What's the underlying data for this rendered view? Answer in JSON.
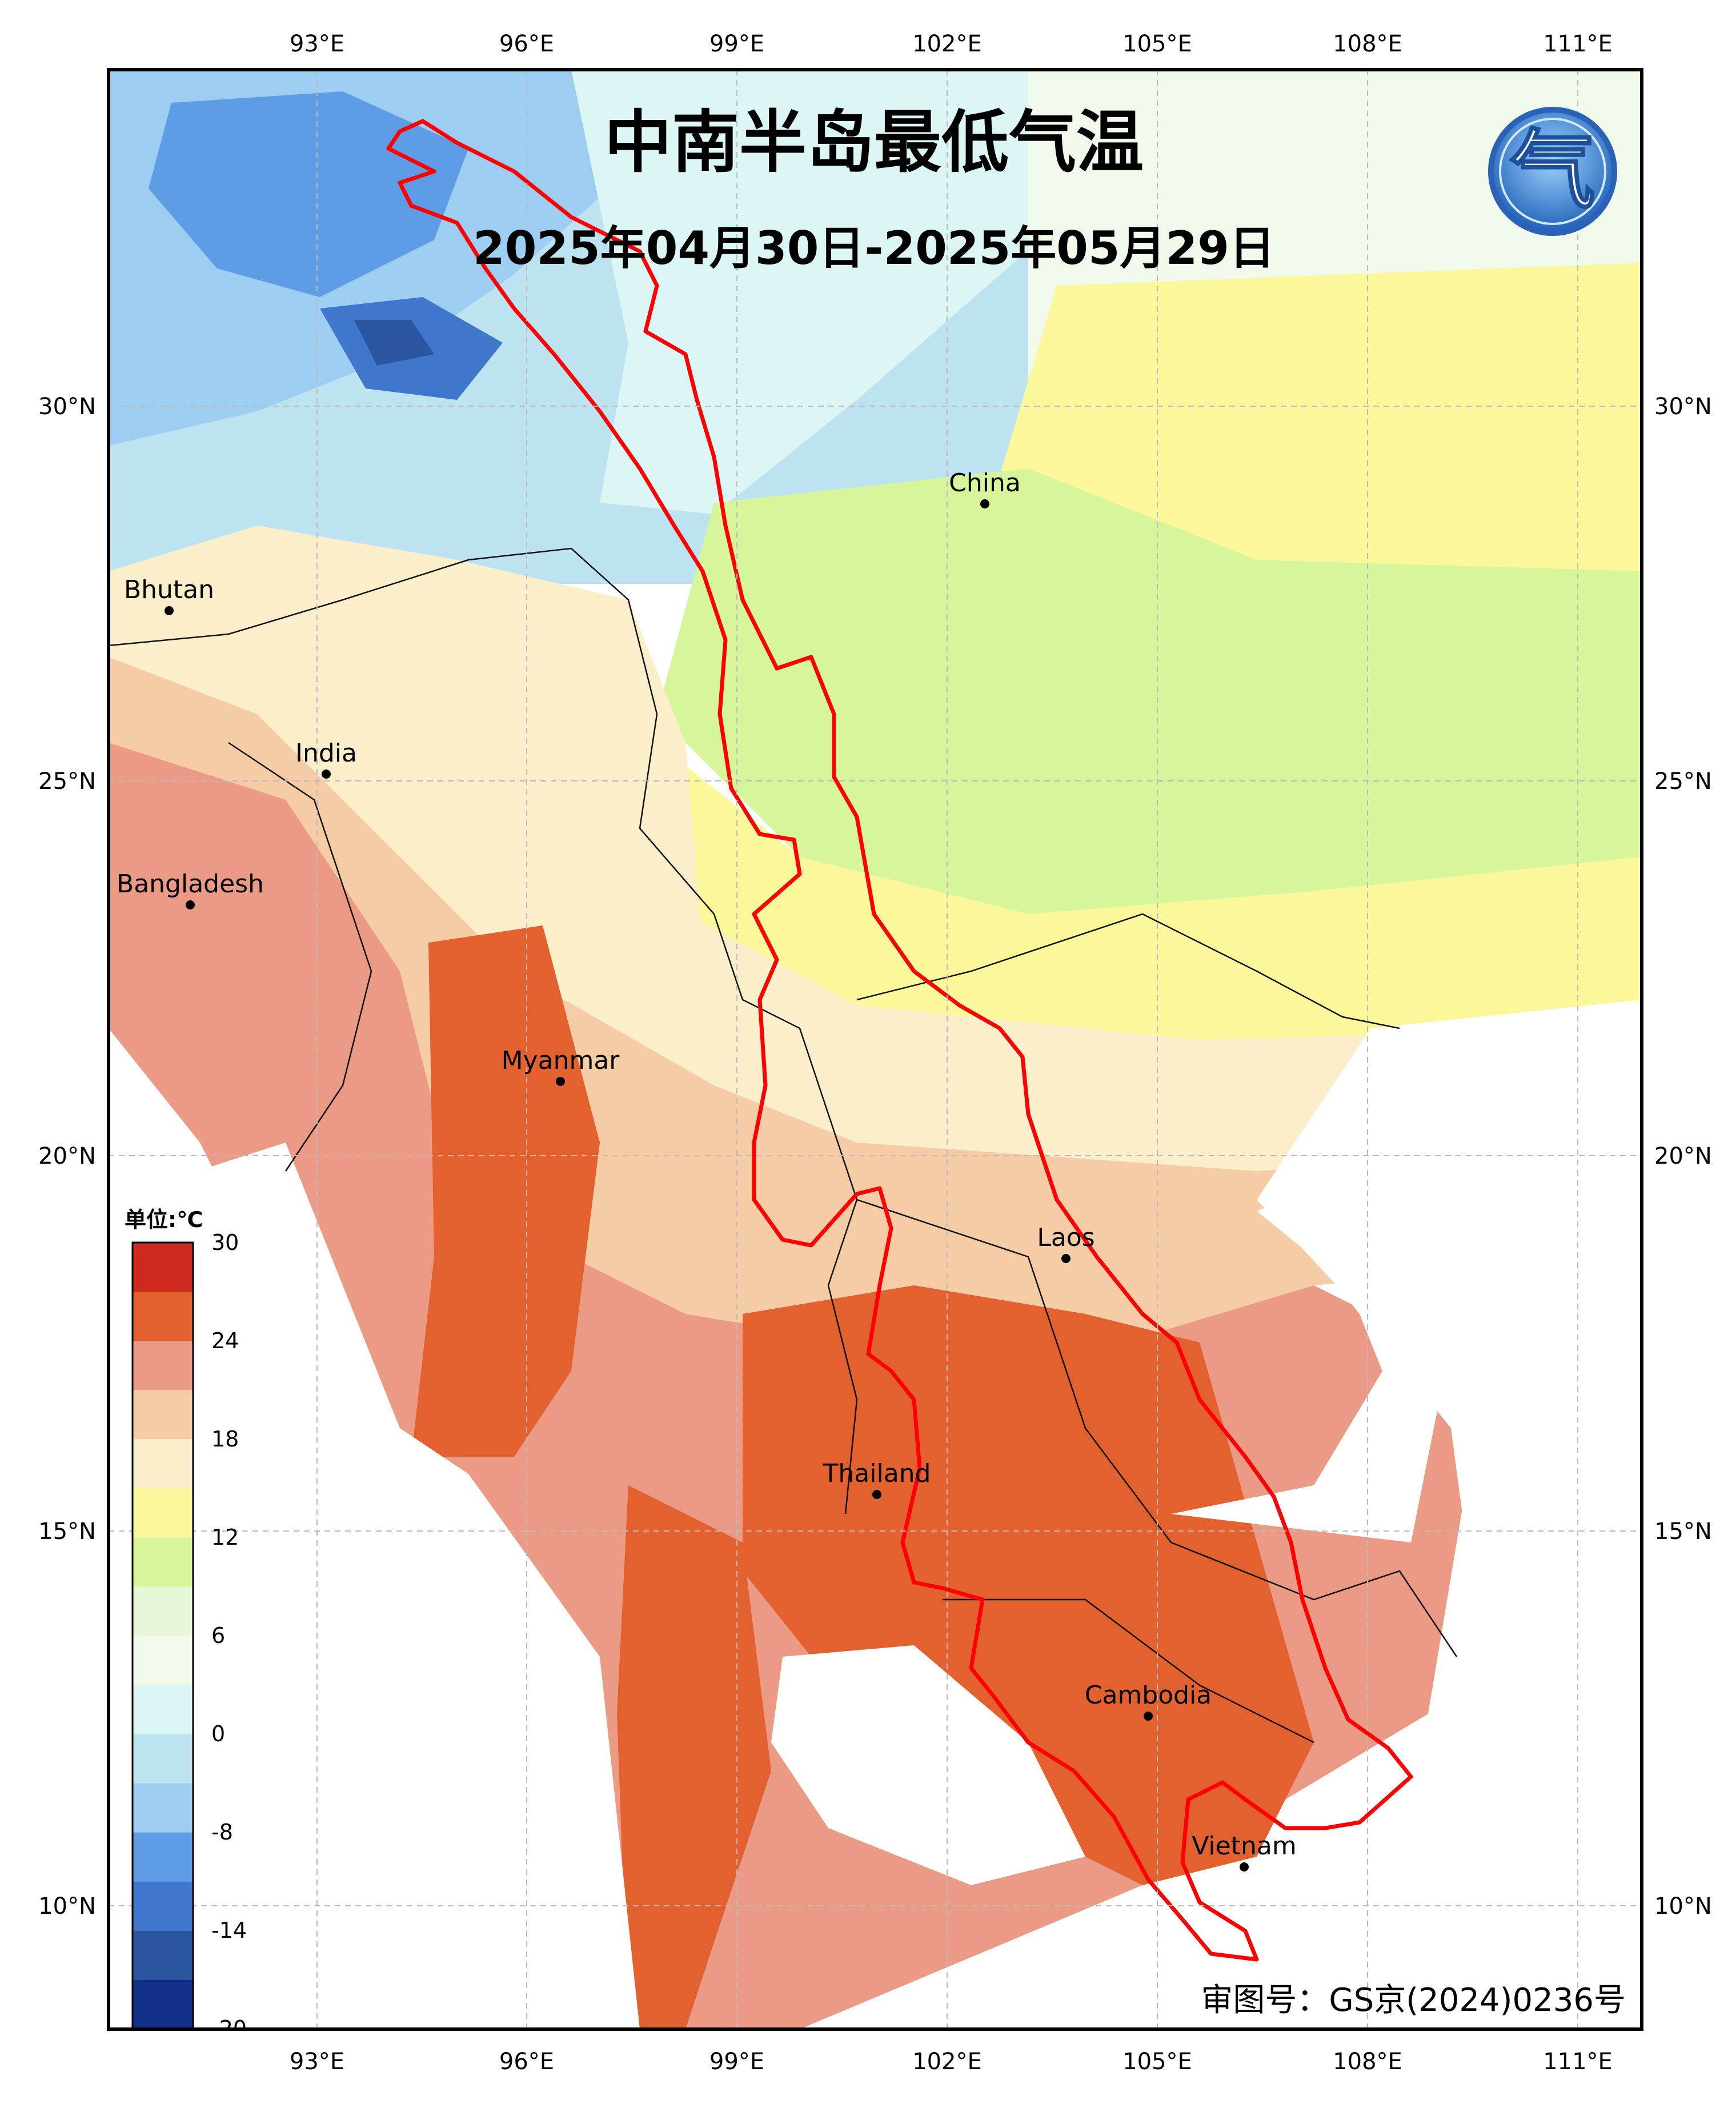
{
  "title": "中南半岛最低气温",
  "subtitle": "2025年04月30日-2025年05月29日",
  "logo_text": "气",
  "approval_number": "审图号：GS京(2024)0236号",
  "colors": {
    "frame": "#000000",
    "grid": "#bbbbbb",
    "border_highlight": "#ff0000",
    "country_border": "#111111",
    "sea": "#ffffff"
  },
  "longitude_labels": [
    "93°E",
    "96°E",
    "99°E",
    "102°E",
    "105°E",
    "108°E",
    "111°E"
  ],
  "latitude_labels": [
    "30°N",
    "25°N",
    "20°N",
    "15°N",
    "10°N"
  ],
  "places": [
    {
      "key": "china",
      "name": "China"
    },
    {
      "key": "bhutan",
      "name": "Bhutan"
    },
    {
      "key": "india",
      "name": "India"
    },
    {
      "key": "bangladesh",
      "name": "Bangladesh"
    },
    {
      "key": "myanmar",
      "name": "Myanmar"
    },
    {
      "key": "laos",
      "name": "Laos"
    },
    {
      "key": "thailand",
      "name": "Thailand"
    },
    {
      "key": "cambodia",
      "name": "Cambodia"
    },
    {
      "key": "vietnam",
      "name": "Vietnam"
    }
  ],
  "legend": {
    "unit": "单位:℃",
    "tick_labels": [
      "30",
      "24",
      "18",
      "12",
      "6",
      "0",
      "-8",
      "-14",
      "-20"
    ],
    "bins_top_to_bottom": [
      {
        "color": "#cc2a1c"
      },
      {
        "color": "#e2612e"
      },
      {
        "color": "#eb9a86"
      },
      {
        "color": "#f5cca5"
      },
      {
        "color": "#fbeecb"
      },
      {
        "color": "#fbf89c"
      },
      {
        "color": "#d7f59a"
      },
      {
        "color": "#e6f8d7"
      },
      {
        "color": "#f1faea"
      },
      {
        "color": "#dcf6f6"
      },
      {
        "color": "#bde3f1"
      },
      {
        "color": "#9dcdf0"
      },
      {
        "color": "#5e9de6"
      },
      {
        "color": "#3f77cc"
      },
      {
        "color": "#2a56a0"
      },
      {
        "color": "#12308a"
      }
    ]
  }
}
